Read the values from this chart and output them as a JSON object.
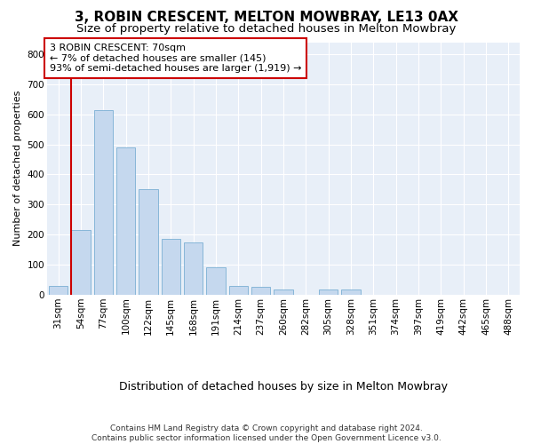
{
  "title": "3, ROBIN CRESCENT, MELTON MOWBRAY, LE13 0AX",
  "subtitle": "Size of property relative to detached houses in Melton Mowbray",
  "xlabel": "Distribution of detached houses by size in Melton Mowbray",
  "ylabel": "Number of detached properties",
  "categories": [
    "31sqm",
    "54sqm",
    "77sqm",
    "100sqm",
    "122sqm",
    "145sqm",
    "168sqm",
    "191sqm",
    "214sqm",
    "237sqm",
    "260sqm",
    "282sqm",
    "305sqm",
    "328sqm",
    "351sqm",
    "374sqm",
    "397sqm",
    "419sqm",
    "442sqm",
    "465sqm",
    "488sqm"
  ],
  "values": [
    30,
    215,
    615,
    490,
    350,
    185,
    175,
    90,
    30,
    25,
    18,
    0,
    18,
    18,
    0,
    0,
    0,
    0,
    0,
    0,
    0
  ],
  "bar_color": "#c5d8ee",
  "bar_edge_color": "#7bafd4",
  "vline_color": "#cc0000",
  "vline_pos": 0.575,
  "annotation_text": "3 ROBIN CRESCENT: 70sqm\n← 7% of detached houses are smaller (145)\n93% of semi-detached houses are larger (1,919) →",
  "annotation_box_facecolor": "#ffffff",
  "annotation_box_edgecolor": "#cc0000",
  "ylim": [
    0,
    840
  ],
  "yticks": [
    0,
    100,
    200,
    300,
    400,
    500,
    600,
    700,
    800
  ],
  "plot_bg_color": "#e8eff8",
  "grid_color": "#ffffff",
  "footer": "Contains HM Land Registry data © Crown copyright and database right 2024.\nContains public sector information licensed under the Open Government Licence v3.0.",
  "title_fontsize": 11,
  "subtitle_fontsize": 9.5,
  "xlabel_fontsize": 9,
  "ylabel_fontsize": 8,
  "tick_fontsize": 7.5,
  "footer_fontsize": 6.5,
  "annotation_fontsize": 8
}
